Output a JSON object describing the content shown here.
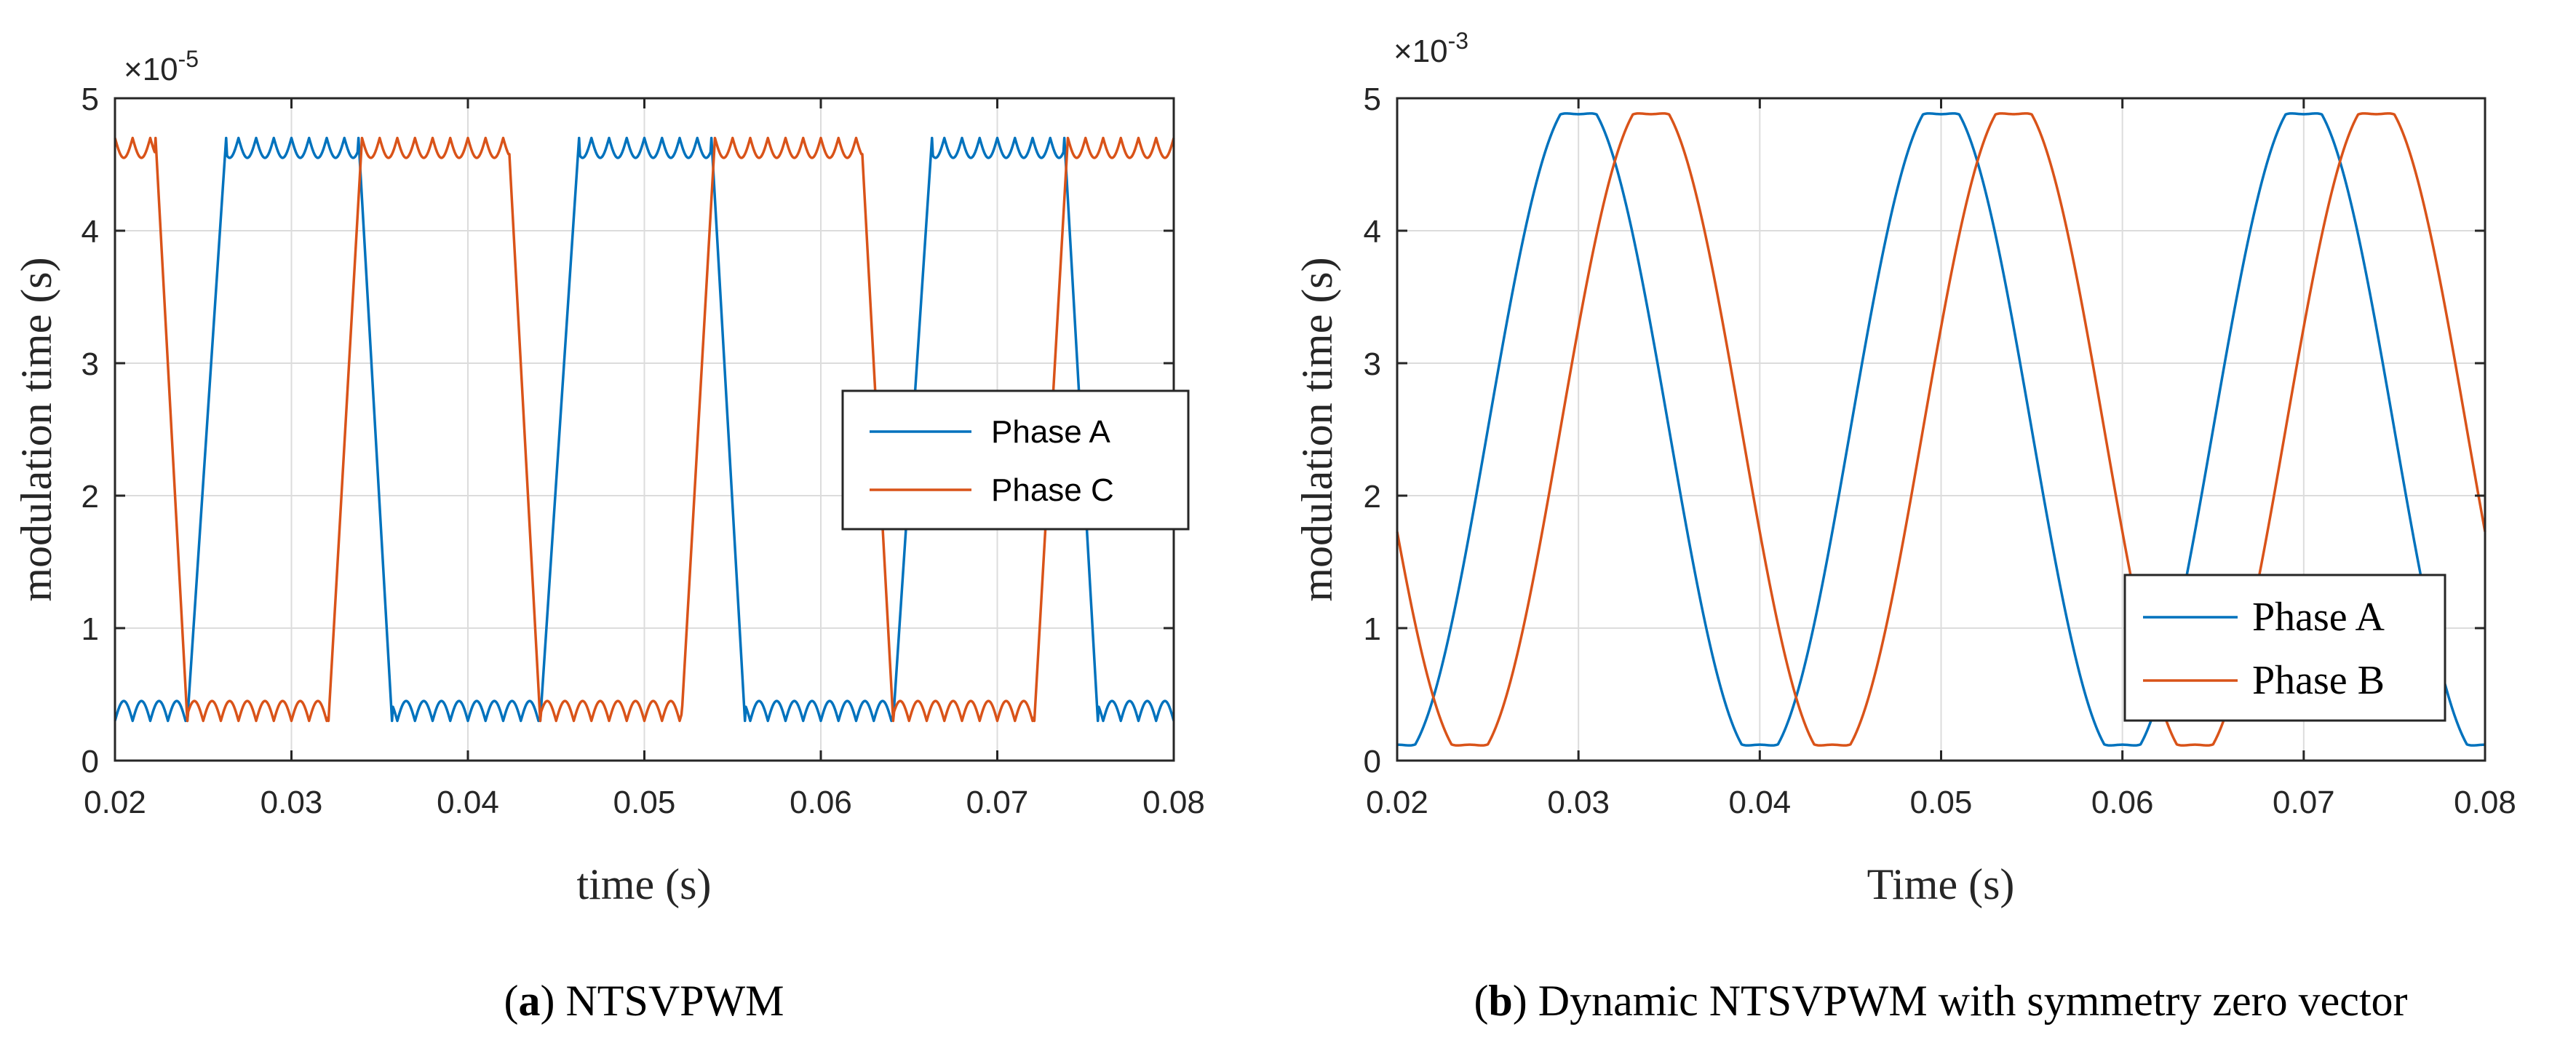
{
  "chart_data": [
    {
      "id": "a",
      "type": "line",
      "caption_label": "a",
      "caption_text": "NTSVPWM",
      "xlabel": "time (s)",
      "ylabel": "modulation time (s)",
      "multiplier_base": "×10",
      "multiplier_exp": "-5",
      "xlim": [
        0.02,
        0.08
      ],
      "ylim": [
        0,
        5
      ],
      "xticks": [
        0.02,
        0.03,
        0.04,
        0.05,
        0.06,
        0.07,
        0.08
      ],
      "xtick_labels": [
        "0.02",
        "0.03",
        "0.04",
        "0.05",
        "0.06",
        "0.07",
        "0.08"
      ],
      "yticks": [
        0,
        1,
        2,
        3,
        4,
        5
      ],
      "ytick_labels": [
        "0",
        "1",
        "2",
        "3",
        "4",
        "5"
      ],
      "grid": true,
      "legend_position": "center-right",
      "series": [
        {
          "name": "Phase A",
          "color": "#0072BD",
          "kind": "trapezoid",
          "period": 0.02,
          "low": 0.3,
          "high": 4.7,
          "ripple": 0.15,
          "ripple_period": 0.001,
          "rise_start": 0.0241,
          "rise_end": 0.0263,
          "fall_start": 0.0338,
          "fall_end": 0.0357
        },
        {
          "name": "Phase C",
          "color": "#D95319",
          "kind": "trapezoid",
          "period": 0.02,
          "low": 0.3,
          "high": 4.7,
          "ripple": 0.15,
          "ripple_period": 0.001,
          "rise_start": 0.0321,
          "rise_end": 0.034,
          "fall_start": 0.0223,
          "fall_end": 0.0241
        }
      ]
    },
    {
      "id": "b",
      "type": "line",
      "caption_label": "b",
      "caption_text": "Dynamic NTSVPWM with symmetry zero vector",
      "xlabel": "Time (s)",
      "ylabel": "modulation time (s)",
      "multiplier_base": "×10",
      "multiplier_exp": "-3",
      "xlim": [
        0.02,
        0.08
      ],
      "ylim": [
        0,
        5
      ],
      "xticks": [
        0.02,
        0.03,
        0.04,
        0.05,
        0.06,
        0.07,
        0.08
      ],
      "xtick_labels": [
        "0.02",
        "0.03",
        "0.04",
        "0.05",
        "0.06",
        "0.07",
        "0.08"
      ],
      "yticks": [
        0,
        1,
        2,
        3,
        4,
        5
      ],
      "ytick_labels": [
        "0",
        "1",
        "2",
        "3",
        "4",
        "5"
      ],
      "grid": true,
      "legend_position": "bottom-right",
      "series": [
        {
          "name": "Phase A",
          "color": "#0072BD",
          "kind": "cosine-dip",
          "period": 0.02,
          "peak_center": 0.03,
          "amplitude": 5.0,
          "dip_depth": 0.12,
          "dip_halfwidth": 0.001
        },
        {
          "name": "Phase B",
          "color": "#D95319",
          "kind": "cosine-dip",
          "period": 0.02,
          "peak_center": 0.034,
          "amplitude": 5.0,
          "dip_depth": 0.12,
          "dip_halfwidth": 0.001
        }
      ]
    }
  ]
}
